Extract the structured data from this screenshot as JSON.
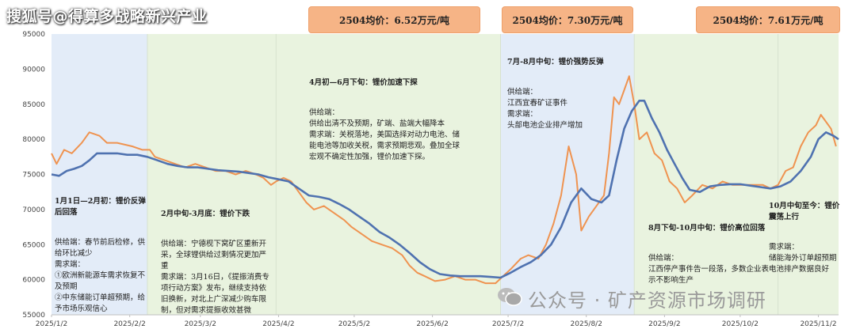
{
  "watermarks": {
    "top": "搜狐号@得算多战略新兴产业",
    "bottom": "公众号 · 矿产资源市场调研"
  },
  "price_boxes": [
    {
      "label": "2504均价：6.52万元/吨"
    },
    {
      "label": "2504均价：7.30万元/吨"
    },
    {
      "label": "2504均价：7.61万元/吨"
    }
  ],
  "annotations": {
    "p1": {
      "title": "1月1日—2月初：锂价反弹后回落",
      "body": "供给端：春节前后检修，供给环比减少\n需求端：\n①欧洲新能源车需求恢复不及预期\n②中东储能订单超预期，给予市场乐观信心"
    },
    "p2": {
      "title": "2月中旬-3月底：锂价下跌",
      "body": "供给端：宁德枧下窝矿区重新开采，全球锂供给过剩情况更加严重\n需求端：3月16日，《提振消费专项行动方案》发布，继续支持依旧换新，对北上广深减少购车限制，但对需求提振收效甚微"
    },
    "p3": {
      "title": "4月初—6月下旬：锂价加速下探",
      "body": "供给端：\n供给出清不及预期，矿端、盐端大幅降本\n需求端：关税落地，美国选择对动力电池、储能电池等加收关税，需求预期悲观。叠加全球宏观不确定性加强，锂价加速下探。"
    },
    "p4": {
      "title": "7月-8月中旬：锂价强势反弹",
      "body": "供给端：\n江西宜春矿证事件\n需求端：\n头部电池企业排产增加"
    },
    "p5": {
      "title": "8月下旬-10月中旬：锂价高位回落",
      "body": "供给端：\n江西停产事件告一段落，多数企业表示不影响生产"
    },
    "p6": {
      "title": "10月中旬至今：锂价震荡上行",
      "body": "需求端：\n储能海外订单超预期\n电池排产数据良好"
    }
  },
  "colors": {
    "orange_line": "#ef9350",
    "blue_line": "#4f72b0",
    "band_blue": "#e3ecf8",
    "band_green": "#e9f3df",
    "box_fill": "#f6b486"
  },
  "chart_data": {
    "type": "line",
    "title": "",
    "xlabel": "",
    "ylabel": "",
    "ylim": [
      55000,
      95000
    ],
    "yticks": [
      55000,
      60000,
      65000,
      70000,
      75000,
      80000,
      85000,
      90000,
      95000
    ],
    "xlim": [
      "2025-01-02",
      "2025-11-10"
    ],
    "xticks": [
      "2025/1/2",
      "2025/2/2",
      "2025/3/2",
      "2025/4/2",
      "2025/5/2",
      "2025/6/2",
      "2025/7/2",
      "2025/8/2",
      "2025/9/2",
      "2025/10/2",
      "2025/11/2"
    ],
    "tick_dates": [
      "2025-01-02",
      "2025-02-02",
      "2025-03-02",
      "2025-04-02",
      "2025-05-02",
      "2025-06-02",
      "2025-07-02",
      "2025-08-02",
      "2025-09-02",
      "2025-10-02",
      "2025-11-02"
    ],
    "periods": [
      {
        "start": "2025-01-02",
        "end": "2025-02-09",
        "color": "blue"
      },
      {
        "start": "2025-02-09",
        "end": "2025-04-01",
        "color": "green"
      },
      {
        "start": "2025-04-01",
        "end": "2025-06-29",
        "color": "green"
      },
      {
        "start": "2025-06-29",
        "end": "2025-08-21",
        "color": "blue"
      },
      {
        "start": "2025-08-21",
        "end": "2025-10-17",
        "color": "green"
      },
      {
        "start": "2025-10-17",
        "end": "2025-11-10",
        "color": "green"
      }
    ],
    "box_periods": [
      {
        "start": "2025-04-09",
        "end": "2025-06-26"
      },
      {
        "start": "2025-07-01",
        "end": "2025-08-15"
      },
      {
        "start": "2025-09-30",
        "end": "2025-11-09"
      }
    ],
    "series": [
      {
        "color": "orange",
        "points": [
          [
            "2025-01-02",
            78000
          ],
          [
            "2025-01-04",
            76500
          ],
          [
            "2025-01-07",
            78500
          ],
          [
            "2025-01-10",
            78000
          ],
          [
            "2025-01-14",
            79500
          ],
          [
            "2025-01-17",
            81000
          ],
          [
            "2025-01-21",
            80500
          ],
          [
            "2025-01-24",
            79500
          ],
          [
            "2025-01-28",
            79500
          ],
          [
            "2025-02-03",
            79000
          ],
          [
            "2025-02-07",
            78500
          ],
          [
            "2025-02-10",
            78500
          ],
          [
            "2025-02-12",
            77500
          ],
          [
            "2025-02-16",
            77000
          ],
          [
            "2025-02-20",
            76500
          ],
          [
            "2025-02-24",
            76000
          ],
          [
            "2025-02-28",
            76500
          ],
          [
            "2025-03-04",
            76000
          ],
          [
            "2025-03-08",
            75500
          ],
          [
            "2025-03-12",
            75500
          ],
          [
            "2025-03-16",
            75000
          ],
          [
            "2025-03-20",
            75500
          ],
          [
            "2025-03-24",
            75000
          ],
          [
            "2025-03-27",
            74500
          ],
          [
            "2025-03-30",
            73500
          ],
          [
            "2025-04-01",
            74000
          ],
          [
            "2025-04-04",
            74500
          ],
          [
            "2025-04-07",
            74000
          ],
          [
            "2025-04-10",
            72500
          ],
          [
            "2025-04-13",
            71000
          ],
          [
            "2025-04-16",
            70000
          ],
          [
            "2025-04-20",
            70500
          ],
          [
            "2025-04-24",
            69500
          ],
          [
            "2025-04-28",
            68500
          ],
          [
            "2025-05-01",
            67500
          ],
          [
            "2025-05-05",
            66500
          ],
          [
            "2025-05-09",
            65500
          ],
          [
            "2025-05-13",
            65000
          ],
          [
            "2025-05-17",
            64500
          ],
          [
            "2025-05-21",
            63500
          ],
          [
            "2025-05-24",
            62000
          ],
          [
            "2025-05-27",
            61000
          ],
          [
            "2025-05-30",
            60500
          ],
          [
            "2025-06-03",
            59800
          ],
          [
            "2025-06-07",
            60000
          ],
          [
            "2025-06-11",
            60500
          ],
          [
            "2025-06-15",
            60000
          ],
          [
            "2025-06-19",
            60000
          ],
          [
            "2025-06-23",
            59500
          ],
          [
            "2025-06-27",
            59500
          ],
          [
            "2025-06-30",
            60500
          ],
          [
            "2025-07-03",
            61500
          ],
          [
            "2025-07-07",
            63000
          ],
          [
            "2025-07-10",
            63500
          ],
          [
            "2025-07-14",
            63000
          ],
          [
            "2025-07-17",
            65000
          ],
          [
            "2025-07-20",
            68000
          ],
          [
            "2025-07-23",
            72000
          ],
          [
            "2025-07-26",
            79000
          ],
          [
            "2025-07-29",
            75000
          ],
          [
            "2025-07-31",
            67000
          ],
          [
            "2025-08-03",
            69000
          ],
          [
            "2025-08-06",
            70500
          ],
          [
            "2025-08-09",
            72000
          ],
          [
            "2025-08-11",
            78000
          ],
          [
            "2025-08-13",
            86000
          ],
          [
            "2025-08-15",
            85000
          ],
          [
            "2025-08-17",
            87000
          ],
          [
            "2025-08-19",
            89000
          ],
          [
            "2025-08-21",
            85000
          ],
          [
            "2025-08-23",
            80000
          ],
          [
            "2025-08-26",
            81000
          ],
          [
            "2025-08-29",
            78000
          ],
          [
            "2025-09-01",
            77000
          ],
          [
            "2025-09-04",
            74000
          ],
          [
            "2025-09-07",
            73000
          ],
          [
            "2025-09-10",
            71000
          ],
          [
            "2025-09-13",
            72000
          ],
          [
            "2025-09-17",
            73500
          ],
          [
            "2025-09-21",
            73000
          ],
          [
            "2025-09-25",
            74000
          ],
          [
            "2025-09-29",
            73500
          ],
          [
            "2025-10-03",
            73500
          ],
          [
            "2025-10-07",
            73500
          ],
          [
            "2025-10-11",
            73500
          ],
          [
            "2025-10-14",
            73000
          ],
          [
            "2025-10-17",
            73500
          ],
          [
            "2025-10-20",
            75500
          ],
          [
            "2025-10-23",
            76000
          ],
          [
            "2025-10-26",
            79000
          ],
          [
            "2025-10-29",
            81000
          ],
          [
            "2025-11-01",
            82000
          ],
          [
            "2025-11-03",
            83500
          ],
          [
            "2025-11-05",
            82500
          ],
          [
            "2025-11-07",
            81500
          ],
          [
            "2025-11-09",
            79000
          ]
        ]
      },
      {
        "color": "blue",
        "points": [
          [
            "2025-01-02",
            75000
          ],
          [
            "2025-01-05",
            74800
          ],
          [
            "2025-01-08",
            75500
          ],
          [
            "2025-01-11",
            75800
          ],
          [
            "2025-01-14",
            76200
          ],
          [
            "2025-01-17",
            77000
          ],
          [
            "2025-01-20",
            78000
          ],
          [
            "2025-01-24",
            78000
          ],
          [
            "2025-01-28",
            78000
          ],
          [
            "2025-02-01",
            77800
          ],
          [
            "2025-02-05",
            77800
          ],
          [
            "2025-02-09",
            77500
          ],
          [
            "2025-02-13",
            77000
          ],
          [
            "2025-02-17",
            76500
          ],
          [
            "2025-02-21",
            76200
          ],
          [
            "2025-02-25",
            76000
          ],
          [
            "2025-03-01",
            76000
          ],
          [
            "2025-03-05",
            75800
          ],
          [
            "2025-03-09",
            75600
          ],
          [
            "2025-03-13",
            75500
          ],
          [
            "2025-03-17",
            75400
          ],
          [
            "2025-03-21",
            75200
          ],
          [
            "2025-03-25",
            75000
          ],
          [
            "2025-03-29",
            74600
          ],
          [
            "2025-04-02",
            74300
          ],
          [
            "2025-04-06",
            74000
          ],
          [
            "2025-04-10",
            73000
          ],
          [
            "2025-04-14",
            72000
          ],
          [
            "2025-04-18",
            71800
          ],
          [
            "2025-04-22",
            71500
          ],
          [
            "2025-04-26",
            70800
          ],
          [
            "2025-04-30",
            70000
          ],
          [
            "2025-05-04",
            69000
          ],
          [
            "2025-05-08",
            68000
          ],
          [
            "2025-05-12",
            66800
          ],
          [
            "2025-05-16",
            66000
          ],
          [
            "2025-05-20",
            65000
          ],
          [
            "2025-05-24",
            63800
          ],
          [
            "2025-05-28",
            62500
          ],
          [
            "2025-06-01",
            61500
          ],
          [
            "2025-06-05",
            60800
          ],
          [
            "2025-06-09",
            60600
          ],
          [
            "2025-06-13",
            60500
          ],
          [
            "2025-06-17",
            60500
          ],
          [
            "2025-06-21",
            60500
          ],
          [
            "2025-06-25",
            60400
          ],
          [
            "2025-06-29",
            60300
          ],
          [
            "2025-07-03",
            61000
          ],
          [
            "2025-07-07",
            61800
          ],
          [
            "2025-07-11",
            62500
          ],
          [
            "2025-07-15",
            63500
          ],
          [
            "2025-07-19",
            65000
          ],
          [
            "2025-07-23",
            67500
          ],
          [
            "2025-07-27",
            71000
          ],
          [
            "2025-07-31",
            73000
          ],
          [
            "2025-08-04",
            71500
          ],
          [
            "2025-08-08",
            71000
          ],
          [
            "2025-08-11",
            72000
          ],
          [
            "2025-08-14",
            77000
          ],
          [
            "2025-08-17",
            81500
          ],
          [
            "2025-08-20",
            84000
          ],
          [
            "2025-08-23",
            85500
          ],
          [
            "2025-08-25",
            85500
          ],
          [
            "2025-08-28",
            83000
          ],
          [
            "2025-08-31",
            81000
          ],
          [
            "2025-09-03",
            78500
          ],
          [
            "2025-09-06",
            76500
          ],
          [
            "2025-09-09",
            74500
          ],
          [
            "2025-09-12",
            72800
          ],
          [
            "2025-09-16",
            72500
          ],
          [
            "2025-09-20",
            73300
          ],
          [
            "2025-09-24",
            73500
          ],
          [
            "2025-09-28",
            73600
          ],
          [
            "2025-10-02",
            73600
          ],
          [
            "2025-10-06",
            73400
          ],
          [
            "2025-10-10",
            73200
          ],
          [
            "2025-10-14",
            73000
          ],
          [
            "2025-10-18",
            73300
          ],
          [
            "2025-10-22",
            74000
          ],
          [
            "2025-10-26",
            75500
          ],
          [
            "2025-10-30",
            77500
          ],
          [
            "2025-11-02",
            80000
          ],
          [
            "2025-11-05",
            81000
          ],
          [
            "2025-11-08",
            80500
          ],
          [
            "2025-11-10",
            80000
          ]
        ]
      }
    ]
  }
}
